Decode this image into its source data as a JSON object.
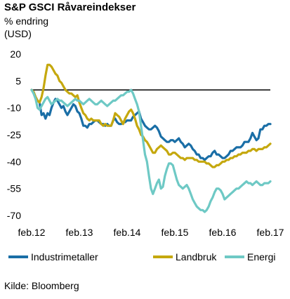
{
  "chart_data": {
    "type": "line",
    "title": "S&P GSCI Råvareindekser",
    "ylabel_line1": "% endring",
    "ylabel_line2": "(USD)",
    "source": "Kilde: Bloomberg",
    "ylim": [
      -70,
      20
    ],
    "yticks": [
      "20",
      "5",
      "-10",
      "-25",
      "-40",
      "-55",
      "-70"
    ],
    "ytick_values": [
      20,
      5,
      -10,
      -25,
      -40,
      -55,
      -70
    ],
    "xlim": [
      0,
      60
    ],
    "xticks": [
      "feb.12",
      "feb.13",
      "feb.14",
      "feb.15",
      "feb.16",
      "feb.17"
    ],
    "xtick_values": [
      0,
      12,
      24,
      36,
      48,
      60
    ],
    "reference_line": 0,
    "grid": false,
    "legend_position": "bottom",
    "series": [
      {
        "name": "Industrimetaller",
        "color": "#1a6ea6",
        "x": [
          0,
          0.5,
          1,
          1.5,
          2,
          2.5,
          3,
          3.5,
          4,
          4.5,
          5,
          5.5,
          6,
          6.5,
          7,
          7.5,
          8,
          8.5,
          9,
          9.5,
          10,
          10.5,
          11,
          11.5,
          12,
          12.5,
          13,
          13.5,
          14,
          14.5,
          15,
          15.5,
          16,
          16.5,
          17,
          17.5,
          18,
          18.5,
          19,
          19.5,
          20,
          20.5,
          21,
          21.5,
          22,
          22.5,
          23,
          23.5,
          24,
          24.5,
          25,
          25.5,
          26,
          26.5,
          27,
          27.5,
          28,
          28.5,
          29,
          29.5,
          30,
          30.5,
          31,
          31.5,
          32,
          32.5,
          33,
          33.5,
          34,
          34.5,
          35,
          35.5,
          36,
          36.5,
          37,
          37.5,
          38,
          38.5,
          39,
          39.5,
          40,
          40.5,
          41,
          41.5,
          42,
          42.5,
          43,
          43.5,
          44,
          44.5,
          45,
          45.5,
          46,
          46.5,
          47,
          47.5,
          48,
          48.5,
          49,
          49.5,
          50,
          50.5,
          51,
          51.5,
          52,
          52.5,
          53,
          53.5,
          54,
          54.5,
          55,
          55.5,
          56,
          56.5,
          57,
          57.5,
          58,
          58.5,
          59,
          59.5,
          60
        ],
        "values": [
          0,
          -1,
          -4,
          -6,
          -7,
          -14,
          -13,
          -16,
          -13,
          -14,
          -10,
          -7,
          -5,
          -6,
          -8,
          -10,
          -9,
          -12,
          -14,
          -12,
          -10,
          -8,
          -9,
          -12,
          -13,
          -16,
          -20,
          -20,
          -21,
          -19,
          -19,
          -18,
          -17,
          -17,
          -18,
          -19,
          -19,
          -20,
          -19,
          -20,
          -20,
          -17,
          -16,
          -18,
          -19,
          -19,
          -18,
          -18,
          -17,
          -17,
          -17,
          -15,
          -14,
          -13,
          -12,
          -16,
          -18,
          -20,
          -21,
          -22,
          -22,
          -21,
          -20,
          -21,
          -23,
          -26,
          -27,
          -28,
          -29,
          -29,
          -28,
          -28,
          -29,
          -28,
          -27,
          -29,
          -30,
          -32,
          -31,
          -30,
          -31,
          -33,
          -34,
          -36,
          -36,
          -38,
          -38,
          -39,
          -38,
          -37,
          -37,
          -35,
          -34,
          -36,
          -36,
          -37,
          -38,
          -38,
          -37,
          -36,
          -34,
          -34,
          -33,
          -32,
          -32,
          -32,
          -31,
          -29,
          -29,
          -29,
          -27,
          -24,
          -26,
          -28,
          -27,
          -22,
          -22,
          -20,
          -20,
          -19,
          -19
        ]
      },
      {
        "name": "Landbruk",
        "color": "#c5a80e",
        "x": [
          0,
          0.5,
          1,
          1.5,
          2,
          2.5,
          3,
          3.5,
          4,
          4.5,
          5,
          5.5,
          6,
          6.5,
          7,
          7.5,
          8,
          8.5,
          9,
          9.5,
          10,
          10.5,
          11,
          11.5,
          12,
          12.5,
          13,
          13.5,
          14,
          14.5,
          15,
          15.5,
          16,
          16.5,
          17,
          17.5,
          18,
          18.5,
          19,
          19.5,
          20,
          20.5,
          21,
          21.5,
          22,
          22.5,
          23,
          23.5,
          24,
          24.5,
          25,
          25.5,
          26,
          26.5,
          27,
          27.5,
          28,
          28.5,
          29,
          29.5,
          30,
          30.5,
          31,
          31.5,
          32,
          32.5,
          33,
          33.5,
          34,
          34.5,
          35,
          35.5,
          36,
          36.5,
          37,
          37.5,
          38,
          38.5,
          39,
          39.5,
          40,
          40.5,
          41,
          41.5,
          42,
          42.5,
          43,
          43.5,
          44,
          44.5,
          45,
          45.5,
          46,
          46.5,
          47,
          47.5,
          48,
          48.5,
          49,
          49.5,
          50,
          50.5,
          51,
          51.5,
          52,
          52.5,
          53,
          53.5,
          54,
          54.5,
          55,
          55.5,
          56,
          56.5,
          57,
          57.5,
          58,
          58.5,
          59,
          59.5,
          60
        ],
        "values": [
          0,
          -1,
          -4,
          -6,
          -7,
          -4,
          1,
          8,
          14,
          14,
          13,
          11,
          9,
          8,
          5,
          4,
          2,
          0,
          -1,
          -2,
          -2,
          -3,
          -4,
          -3,
          -7,
          -10,
          -13,
          -14,
          -16,
          -17,
          -16,
          -17,
          -17,
          -17,
          -17,
          -19,
          -20,
          -19,
          -20,
          -20,
          -20,
          -17,
          -13,
          -14,
          -15,
          -17,
          -19,
          -16,
          -14,
          -12,
          -11,
          -13,
          -16,
          -20,
          -22,
          -25,
          -26,
          -28,
          -29,
          -31,
          -33,
          -35,
          -35,
          -33,
          -32,
          -31,
          -32,
          -33,
          -34,
          -36,
          -36,
          -35,
          -35,
          -36,
          -37,
          -38,
          -38,
          -39,
          -38,
          -38,
          -38,
          -38,
          -39,
          -39,
          -40,
          -40,
          -40,
          -40,
          -41,
          -41,
          -42,
          -43,
          -43,
          -42,
          -42,
          -41,
          -40,
          -40,
          -39,
          -39,
          -38,
          -38,
          -37,
          -37,
          -36,
          -36,
          -35,
          -35,
          -35,
          -34,
          -34,
          -33,
          -33,
          -34,
          -33,
          -33,
          -33,
          -32,
          -32,
          -31,
          -30
        ]
      },
      {
        "name": "Energi",
        "color": "#6ec9c5",
        "x": [
          0,
          0.5,
          1,
          1.5,
          2,
          2.5,
          3,
          3.5,
          4,
          4.5,
          5,
          5.5,
          6,
          6.5,
          7,
          7.5,
          8,
          8.5,
          9,
          9.5,
          10,
          10.5,
          11,
          11.5,
          12,
          12.5,
          13,
          13.5,
          14,
          14.5,
          15,
          15.5,
          16,
          16.5,
          17,
          17.5,
          18,
          18.5,
          19,
          19.5,
          20,
          20.5,
          21,
          21.5,
          22,
          22.5,
          23,
          23.5,
          24,
          24.5,
          25,
          25.5,
          26,
          26.5,
          27,
          27.5,
          28,
          28.5,
          29,
          29.5,
          30,
          30.5,
          31,
          31.5,
          32,
          32.5,
          33,
          33.5,
          34,
          34.5,
          35,
          35.5,
          36,
          36.5,
          37,
          37.5,
          38,
          38.5,
          39,
          39.5,
          40,
          40.5,
          41,
          41.5,
          42,
          42.5,
          43,
          43.5,
          44,
          44.5,
          45,
          45.5,
          46,
          46.5,
          47,
          47.5,
          48,
          48.5,
          49,
          49.5,
          50,
          50.5,
          51,
          51.5,
          52,
          52.5,
          53,
          53.5,
          54,
          54.5,
          55,
          55.5,
          56,
          56.5,
          57,
          57.5,
          58,
          58.5,
          59,
          59.5,
          60
        ],
        "values": [
          0,
          -2,
          -5,
          -10,
          -11,
          -9,
          -7,
          -5,
          -4,
          -6,
          -8,
          -7,
          -6,
          -5,
          -6,
          -6,
          -7,
          -8,
          -9,
          -8,
          -7,
          -6,
          -5,
          -6,
          -6,
          -7,
          -8,
          -7,
          -6,
          -5,
          -6,
          -7,
          -8,
          -8,
          -7,
          -6,
          -7,
          -8,
          -9,
          -8,
          -7,
          -6,
          -6,
          -5,
          -4,
          -3,
          -3,
          -2,
          -1,
          -1,
          0,
          -2,
          -5,
          -8,
          -12,
          -20,
          -28,
          -36,
          -40,
          -48,
          -55,
          -58,
          -55,
          -52,
          -50,
          -55,
          -54,
          -48,
          -44,
          -41,
          -41,
          -42,
          -46,
          -50,
          -53,
          -54,
          -55,
          -54,
          -53,
          -55,
          -58,
          -61,
          -63,
          -65,
          -66,
          -67,
          -67,
          -68,
          -67,
          -65,
          -62,
          -60,
          -57,
          -55,
          -55,
          -56,
          -58,
          -61,
          -60,
          -59,
          -58,
          -57,
          -56,
          -55,
          -55,
          -54,
          -53,
          -52,
          -51,
          -52,
          -52,
          -53,
          -52,
          -51,
          -52,
          -53,
          -53,
          -52,
          -52,
          -52,
          -51
        ]
      }
    ]
  }
}
